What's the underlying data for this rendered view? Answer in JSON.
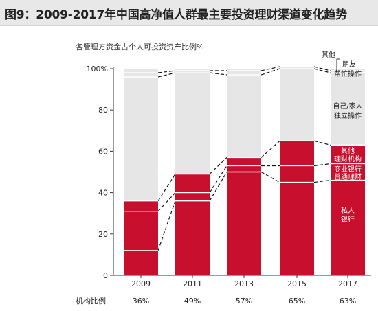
{
  "header": {
    "title": "图9：2009-2017年中国高净值人群最主要投资理财渠道变化趋势"
  },
  "chart_data": {
    "type": "bar",
    "stacked": true,
    "title": "",
    "subtitle": "各管理方资金占个人可投资资产比例%",
    "xlabel": "",
    "ylabel": "",
    "ylim": [
      0,
      100
    ],
    "yticks": [
      0,
      20,
      40,
      60,
      80,
      100
    ],
    "y_tick_labels": [
      "0",
      "20",
      "40",
      "60",
      "80",
      "100%"
    ],
    "grid": false,
    "categories": [
      "2009",
      "2011",
      "2013",
      "2015",
      "2017"
    ],
    "series": [
      {
        "name": "私人银行",
        "values": [
          12,
          36,
          50,
          45,
          46
        ],
        "color": "#c8102e"
      },
      {
        "name": "商业银行普通理财",
        "values": [
          19,
          4,
          3,
          8,
          8
        ],
        "color": "#c8102e"
      },
      {
        "name": "其他理财机构",
        "values": [
          5,
          9,
          4,
          12,
          9
        ],
        "color": "#c8102e"
      },
      {
        "name": "自己/家人独立操作",
        "values": [
          60,
          49,
          40,
          35,
          35
        ],
        "color": "#e6e6e6"
      },
      {
        "name": "朋友帮忙操作",
        "values": [
          2,
          1,
          2,
          1,
          1
        ],
        "color": "#e6e6e6"
      },
      {
        "name": "其他",
        "values": [
          2,
          1,
          1,
          0,
          1
        ],
        "color": "#e6e6e6"
      }
    ],
    "legend_labels": [
      {
        "key": "other",
        "text": "其他"
      },
      {
        "key": "friend_1",
        "text": "朋友"
      },
      {
        "key": "friend_2",
        "text": "帮忙操作"
      },
      {
        "key": "self_1",
        "text": "自己/家人"
      },
      {
        "key": "self_2",
        "text": "独立操作"
      },
      {
        "key": "other_inst_1",
        "text": "其他"
      },
      {
        "key": "other_inst_2",
        "text": "理财机构"
      },
      {
        "key": "comm_1",
        "text": "商业银行"
      },
      {
        "key": "comm_2",
        "text": "普通理财"
      },
      {
        "key": "private_1",
        "text": "私人"
      },
      {
        "key": "private_2",
        "text": "银行"
      }
    ],
    "institution_row": {
      "label": "机构比例",
      "values": [
        "36%",
        "49%",
        "57%",
        "65%",
        "63%"
      ]
    }
  }
}
